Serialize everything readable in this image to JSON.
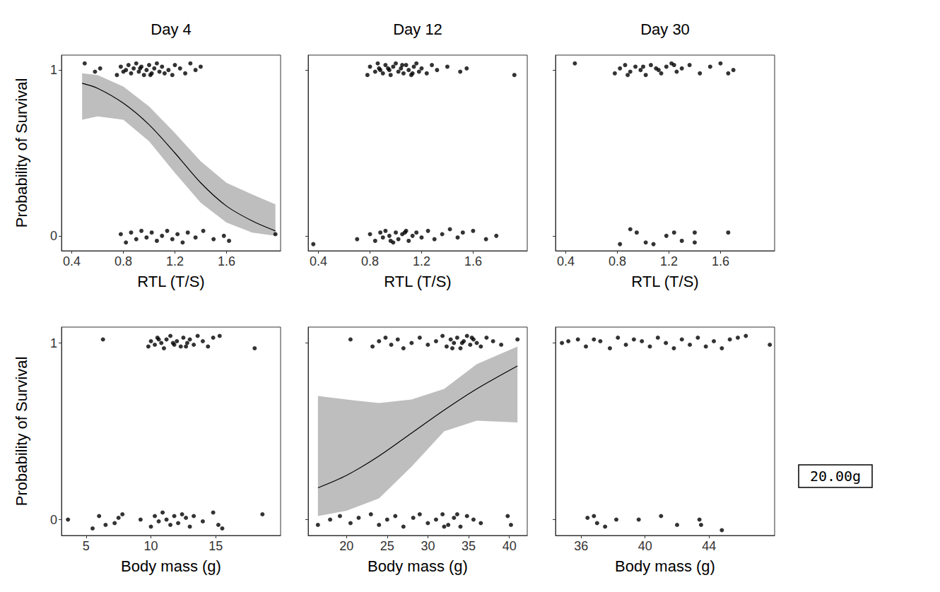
{
  "chart_data": [
    {
      "type": "scatter",
      "title": "Day 4",
      "x_label": "RTL (T/S)",
      "y_label": "Probability of Survival",
      "xlim": [
        0.32,
        2.02
      ],
      "xticks": [
        0.4,
        0.8,
        1.2,
        1.6
      ],
      "ylim": [
        -0.09,
        1.09
      ],
      "yticks": [
        0,
        1
      ],
      "grid": false,
      "points": {
        "color": "#000000",
        "marker": "circle",
        "x": [
          0.5,
          0.58,
          0.62,
          0.75,
          0.78,
          0.82,
          0.84,
          0.86,
          0.88,
          0.9,
          0.92,
          0.94,
          0.96,
          0.98,
          1.0,
          1.02,
          1.04,
          1.06,
          1.08,
          1.1,
          1.12,
          1.15,
          1.18,
          1.2,
          1.24,
          1.28,
          1.32,
          1.36,
          1.4,
          0.8,
          0.93,
          1.01,
          0.78,
          0.82,
          0.86,
          0.9,
          0.94,
          0.98,
          1.02,
          1.06,
          1.1,
          1.14,
          1.18,
          1.22,
          1.26,
          1.3,
          1.36,
          1.42,
          1.5,
          1.58,
          1.62,
          1.98
        ],
        "y": [
          1.04,
          0.99,
          1.01,
          0.97,
          1.02,
          1.0,
          1.03,
          0.98,
          1.01,
          1.04,
          0.99,
          1.02,
          0.97,
          1.0,
          1.03,
          0.98,
          1.01,
          1.04,
          0.99,
          1.02,
          0.98,
          1.0,
          0.97,
          1.03,
          1.01,
          0.98,
          1.04,
          1.0,
          1.02,
          0.99,
          1.01,
          0.97,
          0.01,
          -0.04,
          0.02,
          -0.02,
          0.03,
          -0.01,
          0.02,
          -0.03,
          0.0,
          0.03,
          -0.02,
          0.01,
          -0.04,
          0.02,
          -0.01,
          0.03,
          -0.02,
          0.0,
          -0.03,
          0.01
        ]
      },
      "fit": {
        "color": "#000000",
        "band_color": "#bebebe",
        "line_style": "solid",
        "x": [
          0.48,
          0.6,
          0.8,
          1.0,
          1.2,
          1.4,
          1.6,
          1.8,
          1.98
        ],
        "y": [
          0.92,
          0.89,
          0.8,
          0.67,
          0.5,
          0.32,
          0.18,
          0.09,
          0.03
        ],
        "lower": [
          0.7,
          0.72,
          0.7,
          0.57,
          0.38,
          0.2,
          0.08,
          0.02,
          0.0
        ],
        "upper": [
          0.98,
          0.97,
          0.9,
          0.78,
          0.62,
          0.45,
          0.32,
          0.25,
          0.19
        ]
      }
    },
    {
      "type": "scatter",
      "title": "Day 12",
      "x_label": "RTL (T/S)",
      "tick_labels": "x",
      "xlim": [
        0.32,
        2.02
      ],
      "xticks": [
        0.4,
        0.8,
        1.2,
        1.6
      ],
      "ylim": [
        -0.09,
        1.09
      ],
      "yticks": [
        0,
        1
      ],
      "grid": false,
      "points": {
        "color": "#000000",
        "marker": "circle",
        "x": [
          0.78,
          0.8,
          0.84,
          0.86,
          0.88,
          0.9,
          0.92,
          0.94,
          0.96,
          0.98,
          1.0,
          1.02,
          1.04,
          1.06,
          1.08,
          1.1,
          1.12,
          1.14,
          1.16,
          1.18,
          1.2,
          1.24,
          1.28,
          1.32,
          1.4,
          1.5,
          1.55,
          1.92,
          0.95,
          1.05,
          1.13,
          0.87,
          0.36,
          0.7,
          0.8,
          0.84,
          0.88,
          0.9,
          0.92,
          0.95,
          0.98,
          1.0,
          1.02,
          1.05,
          1.08,
          1.1,
          1.13,
          1.16,
          1.2,
          1.25,
          1.3,
          1.36,
          1.42,
          1.48,
          1.52,
          1.6,
          1.7,
          1.78,
          0.96,
          1.07
        ],
        "y": [
          0.97,
          1.02,
          0.99,
          1.04,
          1.0,
          0.98,
          1.03,
          1.01,
          0.97,
          1.02,
          1.04,
          0.99,
          1.01,
          0.98,
          1.03,
          1.0,
          0.97,
          1.02,
          1.04,
          0.99,
          1.01,
          0.98,
          1.03,
          1.0,
          1.02,
          0.99,
          1.01,
          0.97,
          1.0,
          1.03,
          0.98,
          1.01,
          -0.05,
          -0.02,
          0.01,
          -0.03,
          0.02,
          -0.01,
          0.03,
          0.0,
          -0.04,
          0.02,
          -0.02,
          0.01,
          0.03,
          -0.03,
          0.0,
          0.02,
          -0.01,
          0.03,
          -0.02,
          0.01,
          0.04,
          -0.01,
          0.02,
          0.03,
          -0.02,
          0.0,
          -0.03,
          0.02
        ]
      }
    },
    {
      "type": "scatter",
      "title": "Day 30",
      "x_label": "RTL (T/S)",
      "tick_labels": "x",
      "xlim": [
        0.32,
        2.02
      ],
      "xticks": [
        0.4,
        0.8,
        1.2,
        1.6
      ],
      "ylim": [
        -0.09,
        1.09
      ],
      "yticks": [
        0,
        1
      ],
      "grid": false,
      "points": {
        "color": "#000000",
        "marker": "circle",
        "x": [
          0.47,
          0.78,
          0.82,
          0.86,
          0.9,
          0.94,
          0.98,
          1.02,
          1.06,
          1.1,
          1.14,
          1.18,
          1.22,
          1.26,
          1.3,
          1.36,
          1.44,
          1.52,
          1.6,
          1.66,
          1.7,
          0.88,
          1.0,
          1.12,
          1.24,
          0.82,
          0.9,
          0.95,
          1.02,
          1.08,
          1.18,
          1.24,
          1.3,
          1.4,
          1.4,
          1.66
        ],
        "y": [
          1.04,
          0.98,
          1.01,
          1.03,
          0.99,
          1.02,
          1.0,
          0.97,
          1.03,
          1.01,
          0.98,
          1.02,
          1.04,
          0.99,
          1.01,
          1.03,
          0.98,
          1.02,
          1.04,
          0.98,
          1.0,
          0.97,
          1.02,
          1.0,
          1.03,
          -0.05,
          0.04,
          0.02,
          -0.04,
          -0.05,
          0.0,
          0.02,
          -0.03,
          0.02,
          -0.04,
          0.02
        ]
      }
    },
    {
      "type": "scatter",
      "x_label": "Body mass (g)",
      "y_label": "Probability of Survival",
      "xlim": [
        3.1,
        20.0
      ],
      "xticks": [
        5,
        10,
        15
      ],
      "ylim": [
        -0.09,
        1.09
      ],
      "yticks": [
        0,
        1
      ],
      "grid": false,
      "points": {
        "color": "#000000",
        "marker": "circle",
        "x": [
          6.3,
          9.8,
          10.0,
          10.3,
          10.5,
          10.8,
          11.0,
          11.2,
          11.5,
          11.8,
          12.0,
          12.3,
          12.5,
          12.8,
          13.0,
          13.3,
          13.6,
          14.0,
          14.4,
          14.8,
          15.3,
          18.0,
          10.6,
          11.7,
          12.7,
          3.6,
          5.5,
          6.0,
          6.5,
          7.2,
          7.5,
          7.8,
          9.2,
          10.0,
          10.3,
          10.6,
          10.9,
          11.2,
          11.5,
          11.8,
          12.1,
          12.4,
          12.7,
          13.0,
          13.3,
          14.0,
          14.8,
          15.2,
          15.5,
          18.6
        ],
        "y": [
          1.02,
          0.98,
          1.01,
          0.99,
          1.03,
          1.0,
          0.97,
          1.02,
          1.04,
          0.99,
          1.01,
          0.98,
          1.03,
          1.0,
          1.02,
          0.99,
          1.04,
          1.01,
          0.98,
          1.03,
          1.04,
          0.97,
          1.02,
          1.0,
          0.98,
          0.0,
          -0.05,
          0.02,
          -0.03,
          -0.02,
          0.01,
          0.03,
          0.0,
          -0.04,
          0.02,
          -0.01,
          0.04,
          0.0,
          -0.03,
          0.02,
          -0.02,
          0.03,
          0.01,
          -0.04,
          0.02,
          -0.01,
          0.04,
          -0.03,
          -0.05,
          0.03
        ]
      }
    },
    {
      "type": "scatter",
      "x_label": "Body mass (g)",
      "tick_labels": "x",
      "xlim": [
        15.3,
        42.2
      ],
      "xticks": [
        20,
        25,
        30,
        35,
        40
      ],
      "ylim": [
        -0.09,
        1.09
      ],
      "yticks": [
        0,
        1
      ],
      "grid": false,
      "points": {
        "color": "#000000",
        "marker": "circle",
        "x": [
          20.5,
          23.2,
          24.0,
          24.8,
          25.5,
          26.3,
          27.0,
          28.0,
          29.0,
          30.0,
          31.0,
          31.8,
          32.3,
          32.8,
          33.2,
          33.6,
          34.0,
          34.4,
          34.8,
          35.2,
          35.6,
          36.0,
          36.5,
          37.2,
          38.0,
          39.0,
          41.0,
          33.0,
          34.2,
          35.4,
          16.5,
          18.0,
          19.2,
          20.5,
          21.5,
          23.0,
          24.0,
          25.0,
          26.0,
          27.0,
          28.2,
          29.0,
          30.0,
          31.0,
          31.8,
          32.5,
          33.2,
          34.0,
          34.8,
          35.6,
          36.5,
          39.8,
          40.2,
          32.0,
          33.6
        ],
        "y": [
          1.02,
          0.98,
          1.01,
          1.03,
          0.99,
          1.02,
          0.97,
          1.0,
          1.03,
          0.99,
          1.01,
          1.04,
          0.98,
          1.02,
          1.0,
          1.03,
          0.97,
          1.01,
          1.04,
          0.99,
          1.02,
          1.0,
          0.98,
          1.03,
          1.01,
          0.99,
          1.02,
          0.97,
          1.0,
          1.03,
          -0.03,
          0.0,
          0.02,
          -0.02,
          0.01,
          0.03,
          -0.03,
          0.0,
          0.02,
          -0.04,
          0.01,
          0.03,
          -0.02,
          0.0,
          0.03,
          -0.03,
          0.01,
          -0.04,
          0.02,
          0.0,
          -0.02,
          0.02,
          -0.03,
          -0.04,
          0.03
        ]
      },
      "fit": {
        "color": "#000000",
        "band_color": "#bebebe",
        "line_style": "solid",
        "x": [
          16.5,
          20,
          24,
          28,
          32,
          36,
          41
        ],
        "y": [
          0.18,
          0.25,
          0.36,
          0.49,
          0.62,
          0.74,
          0.87
        ],
        "lower": [
          0.02,
          0.05,
          0.12,
          0.3,
          0.5,
          0.56,
          0.55
        ],
        "upper": [
          0.7,
          0.68,
          0.66,
          0.68,
          0.74,
          0.88,
          0.98
        ]
      }
    },
    {
      "type": "scatter",
      "x_label": "Body mass (g)",
      "tick_labels": "x",
      "annotation": "20.00g",
      "xlim": [
        34.4,
        48.1
      ],
      "xticks": [
        36,
        40,
        44
      ],
      "ylim": [
        -0.09,
        1.09
      ],
      "yticks": [
        0,
        1
      ],
      "grid": false,
      "points": {
        "color": "#000000",
        "marker": "circle",
        "x": [
          34.8,
          35.2,
          35.8,
          36.3,
          36.8,
          37.2,
          37.8,
          38.3,
          38.8,
          39.3,
          39.8,
          40.3,
          40.8,
          41.3,
          41.8,
          42.3,
          42.8,
          43.3,
          43.8,
          44.3,
          44.8,
          45.3,
          45.8,
          46.3,
          47.8,
          36.4,
          36.8,
          37.0,
          37.5,
          38.2,
          39.6,
          41.0,
          42.0,
          43.4,
          43.5,
          44.8
        ],
        "y": [
          1.0,
          1.01,
          1.02,
          0.98,
          1.02,
          1.01,
          0.97,
          1.03,
          0.99,
          1.02,
          1.01,
          0.98,
          1.03,
          1.0,
          0.97,
          1.02,
          0.99,
          1.03,
          0.98,
          1.01,
          0.97,
          1.02,
          1.03,
          1.04,
          0.99,
          0.01,
          0.02,
          -0.02,
          -0.04,
          0.0,
          0.0,
          0.02,
          -0.03,
          0.0,
          -0.03,
          -0.06
        ]
      }
    }
  ]
}
